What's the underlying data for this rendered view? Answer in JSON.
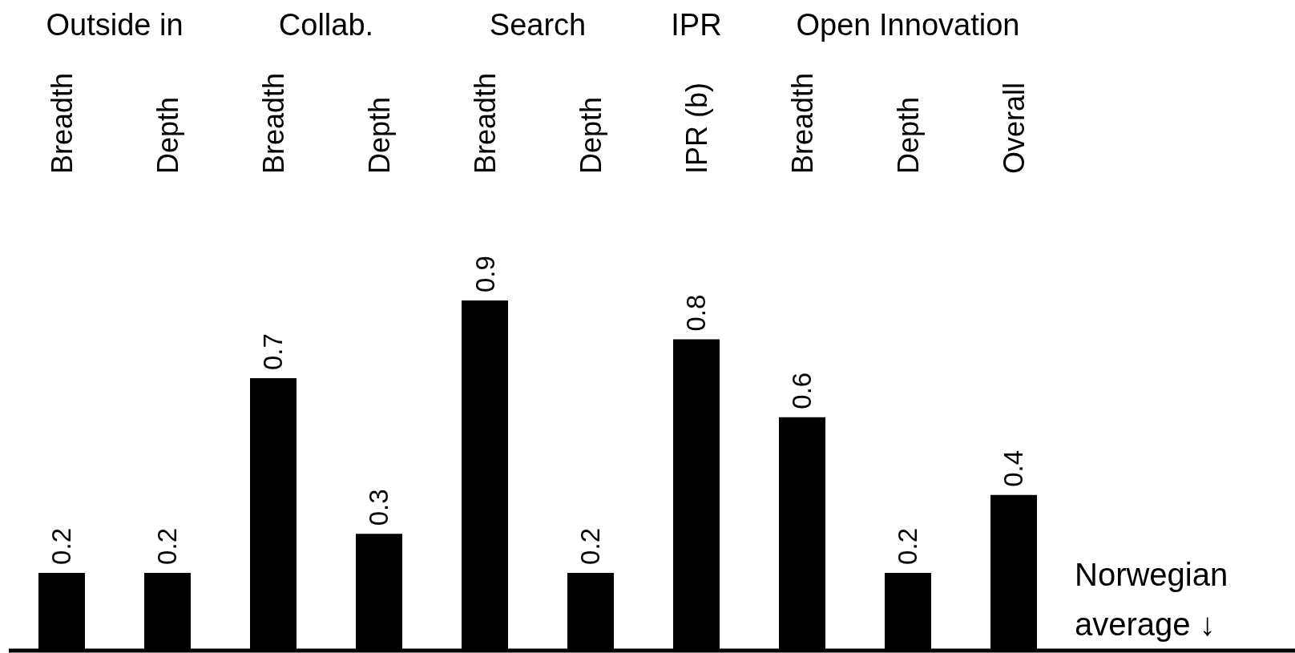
{
  "chart_data": {
    "type": "bar",
    "categories": [
      "Breadth",
      "Depth",
      "Breadth",
      "Depth",
      "Breadth",
      "Depth",
      "IPR (b)",
      "Breadth",
      "Depth",
      "Overall"
    ],
    "values": [
      0.2,
      0.2,
      0.7,
      0.3,
      0.9,
      0.2,
      0.8,
      0.6,
      0.2,
      0.4
    ],
    "color": "#000000",
    "data_labels": true,
    "annotations": [
      "Outside in",
      "Collab.",
      "Search",
      "IPR",
      "Open Innovation",
      "Norwegian average ↓"
    ]
  }
}
